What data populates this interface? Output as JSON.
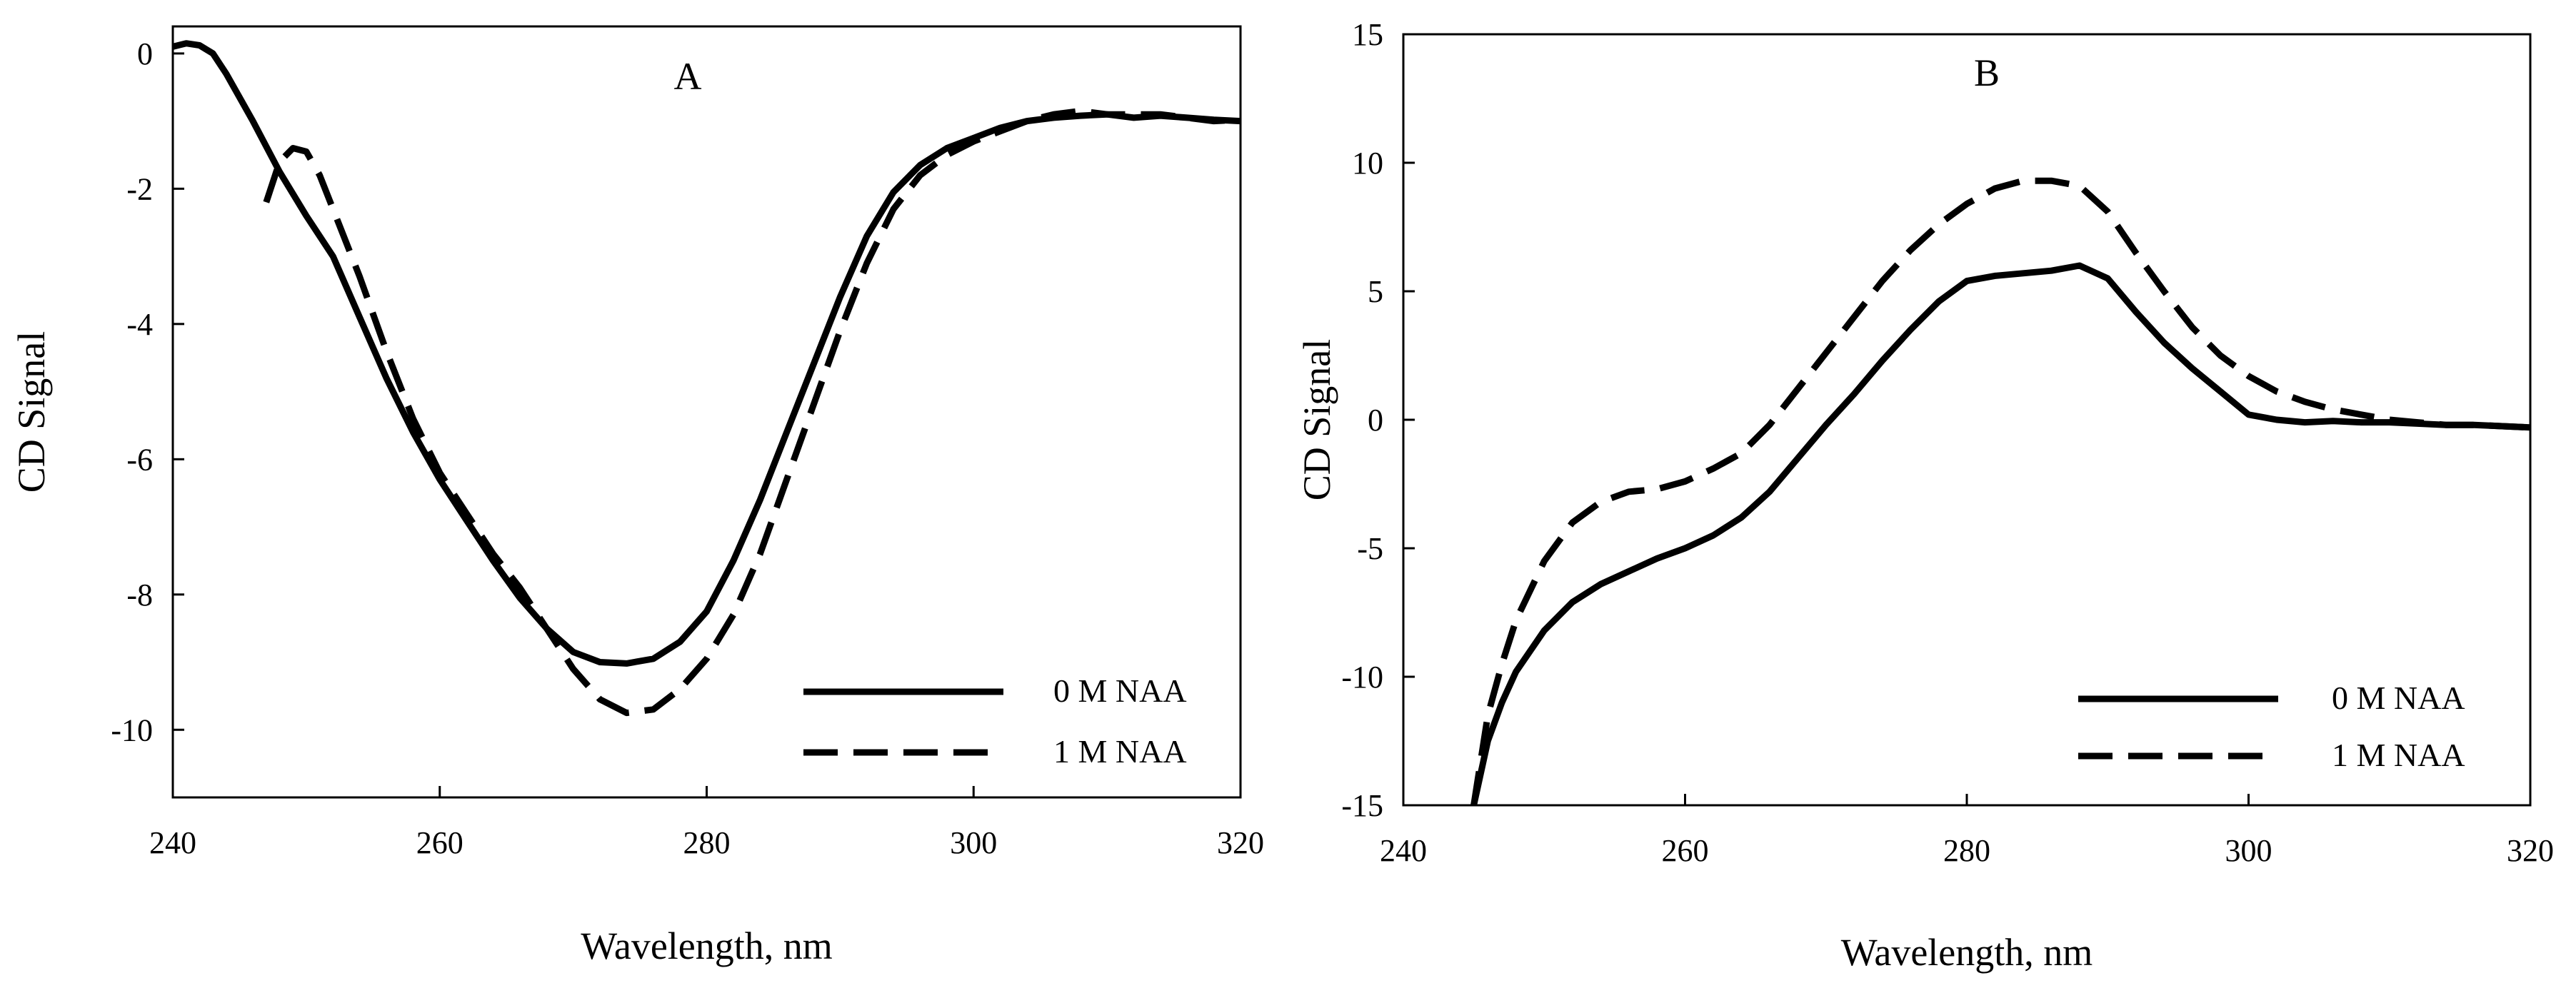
{
  "chart_data": [
    {
      "type": "line",
      "panel_label": "A",
      "xlabel": "Wavelength, nm",
      "ylabel": "CD Signal",
      "xlim": [
        240,
        320
      ],
      "ylim": [
        -11,
        0.4
      ],
      "xticks": [
        240,
        260,
        280,
        300,
        320
      ],
      "yticks": [
        0,
        -2,
        -4,
        -6,
        -8,
        -10
      ],
      "legend_position": "bottom-right",
      "series": [
        {
          "name": "0 M NAA",
          "style": "solid",
          "color": "#000000",
          "x": [
            240,
            241,
            242,
            243,
            244,
            246,
            248,
            250,
            252,
            254,
            256,
            258,
            260,
            262,
            264,
            266,
            268,
            270,
            272,
            274,
            276,
            278,
            280,
            282,
            284,
            286,
            288,
            290,
            292,
            294,
            296,
            298,
            300,
            302,
            304,
            306,
            308,
            310,
            312,
            314,
            316,
            318,
            320
          ],
          "y": [
            0.1,
            0.15,
            0.12,
            0.0,
            -0.3,
            -1.0,
            -1.75,
            -2.4,
            -3.0,
            -3.9,
            -4.8,
            -5.6,
            -6.3,
            -6.9,
            -7.5,
            -8.05,
            -8.5,
            -8.85,
            -9.0,
            -9.02,
            -8.95,
            -8.7,
            -8.25,
            -7.5,
            -6.6,
            -5.6,
            -4.6,
            -3.6,
            -2.7,
            -2.05,
            -1.65,
            -1.4,
            -1.25,
            -1.1,
            -1.0,
            -0.95,
            -0.92,
            -0.9,
            -0.95,
            -0.92,
            -0.95,
            -0.98,
            -1.0
          ]
        },
        {
          "name": "1 M NAA",
          "style": "dashed",
          "color": "#000000",
          "x": [
            247,
            248,
            249,
            250,
            251,
            252,
            254,
            256,
            258,
            260,
            262,
            264,
            266,
            268,
            270,
            272,
            274,
            276,
            278,
            280,
            282,
            284,
            286,
            288,
            290,
            292,
            294,
            296,
            298,
            300,
            302,
            304,
            306,
            308,
            310,
            312,
            314,
            316,
            318,
            320
          ],
          "y": [
            -2.2,
            -1.6,
            -1.4,
            -1.45,
            -1.8,
            -2.3,
            -3.3,
            -4.4,
            -5.4,
            -6.2,
            -6.8,
            -7.4,
            -7.9,
            -8.5,
            -9.1,
            -9.55,
            -9.75,
            -9.7,
            -9.4,
            -8.95,
            -8.3,
            -7.4,
            -6.3,
            -5.2,
            -4.1,
            -3.1,
            -2.3,
            -1.8,
            -1.5,
            -1.3,
            -1.15,
            -1.0,
            -0.9,
            -0.85,
            -0.9,
            -0.9,
            -0.9,
            -0.95,
            -1.0,
            -0.98
          ]
        }
      ]
    },
    {
      "type": "line",
      "panel_label": "B",
      "xlabel": "Wavelength, nm",
      "ylabel": "CD Signal",
      "xlim": [
        240,
        320
      ],
      "ylim": [
        -15,
        15
      ],
      "xticks": [
        240,
        260,
        280,
        300,
        320
      ],
      "yticks": [
        15,
        10,
        5,
        0,
        -5,
        -10,
        -15
      ],
      "legend_position": "bottom-right",
      "series": [
        {
          "name": "0 M NAA",
          "style": "solid",
          "color": "#000000",
          "x": [
            245,
            246,
            247,
            248,
            250,
            252,
            254,
            256,
            258,
            260,
            262,
            264,
            266,
            268,
            270,
            272,
            274,
            276,
            278,
            280,
            282,
            284,
            286,
            288,
            290,
            292,
            294,
            296,
            298,
            300,
            302,
            304,
            306,
            308,
            310,
            312,
            314,
            316,
            318,
            320
          ],
          "y": [
            -15,
            -12.5,
            -11,
            -9.8,
            -8.2,
            -7.1,
            -6.4,
            -5.9,
            -5.4,
            -5.0,
            -4.5,
            -3.8,
            -2.8,
            -1.5,
            -0.2,
            1.0,
            2.3,
            3.5,
            4.6,
            5.4,
            5.6,
            5.7,
            5.8,
            6.0,
            5.5,
            4.2,
            3.0,
            2.0,
            1.1,
            0.2,
            0.0,
            -0.1,
            -0.05,
            -0.1,
            -0.1,
            -0.15,
            -0.2,
            -0.2,
            -0.25,
            -0.3
          ]
        },
        {
          "name": "1 M NAA",
          "style": "dashed",
          "color": "#000000",
          "x": [
            245,
            246,
            247,
            248,
            250,
            252,
            254,
            256,
            258,
            260,
            262,
            264,
            266,
            268,
            270,
            272,
            274,
            276,
            278,
            280,
            282,
            284,
            286,
            288,
            290,
            292,
            294,
            296,
            298,
            300,
            302,
            304,
            306,
            308,
            310,
            312,
            314,
            316,
            318,
            320
          ],
          "y": [
            -15,
            -11.5,
            -9.5,
            -7.8,
            -5.5,
            -4.0,
            -3.2,
            -2.8,
            -2.7,
            -2.4,
            -1.9,
            -1.3,
            -0.2,
            1.2,
            2.6,
            4.0,
            5.4,
            6.6,
            7.6,
            8.4,
            9.0,
            9.3,
            9.3,
            9.1,
            8.1,
            6.5,
            5.0,
            3.6,
            2.5,
            1.7,
            1.1,
            0.7,
            0.4,
            0.2,
            0.0,
            -0.1,
            -0.2,
            -0.2,
            -0.25,
            -0.3
          ]
        }
      ]
    }
  ]
}
